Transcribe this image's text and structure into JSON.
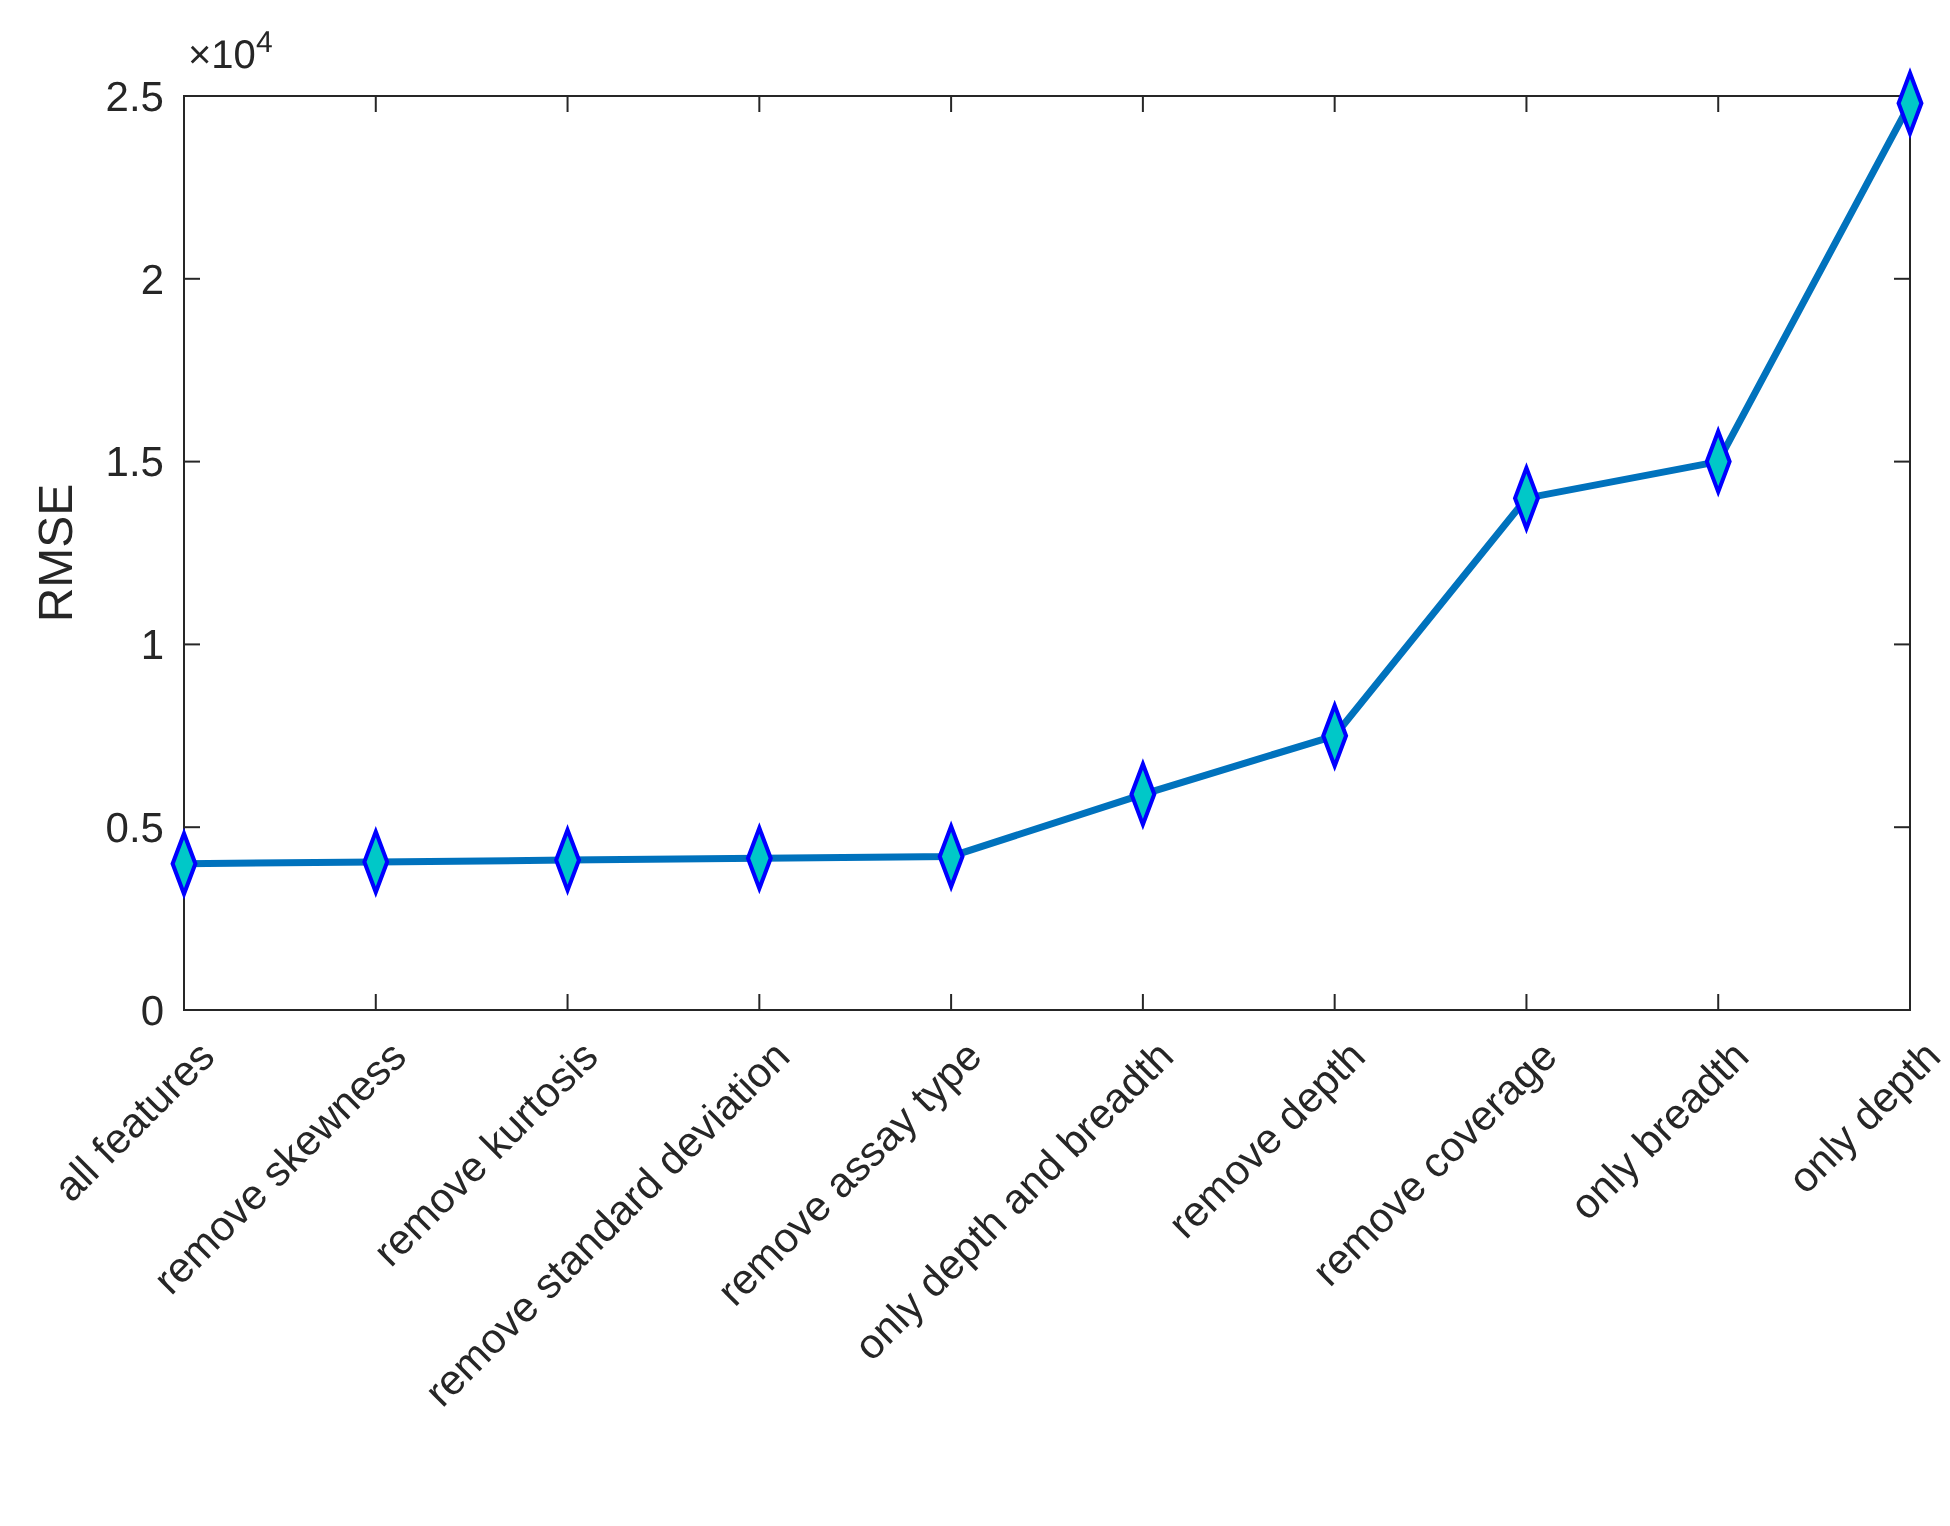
{
  "chart_data": {
    "type": "line",
    "ylabel": "RMSE",
    "categories": [
      "all features",
      "remove skewness",
      "remove kurtosis",
      "remove standard deviation",
      "remove assay type",
      "only depth and breadth",
      "remove depth",
      "remove coverage",
      "only breadth",
      "only depth"
    ],
    "series": [
      {
        "color": "#0072bd",
        "values": [
          0.4,
          0.405,
          0.41,
          0.415,
          0.42,
          0.59,
          0.75,
          1.4,
          1.5,
          2.48
        ]
      }
    ],
    "ylim": [
      0,
      2.5
    ],
    "yticks": [
      0,
      0.5,
      1,
      1.5,
      2,
      2.5
    ],
    "annotations": [
      "×10$^{4}$"
    ],
    "marker": "diamond",
    "line_style": "solid"
  }
}
